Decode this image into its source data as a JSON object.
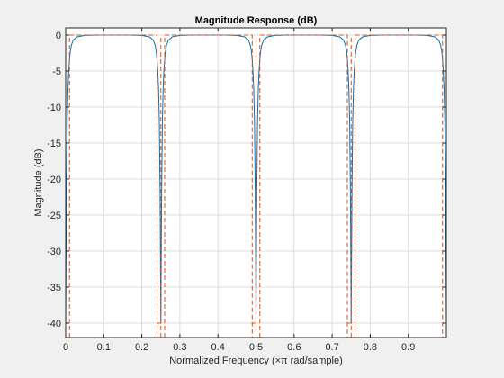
{
  "colors": {
    "figure_bg": "#f0f0f0",
    "axes_bg": "#ffffff",
    "axis": "#262626",
    "grid": "#dcdcdc",
    "response": "#0072bd",
    "mask": "#d95319"
  },
  "chart_data": {
    "type": "line",
    "title": "Magnitude Response (dB)",
    "xlabel": "Normalized Frequency (×π rad/sample)",
    "ylabel": "Magnitude (dB)",
    "xlim": [
      0,
      1
    ],
    "ylim": [
      -42,
      1
    ],
    "xticks": [
      0,
      0.1,
      0.2,
      0.3,
      0.4,
      0.5,
      0.6,
      0.7,
      0.8,
      0.9
    ],
    "xtick_labels": [
      "0",
      "0.1",
      "0.2",
      "0.3",
      "0.4",
      "0.5",
      "0.6",
      "0.7",
      "0.8",
      "0.9"
    ],
    "yticks": [
      0,
      -5,
      -10,
      -15,
      -20,
      -25,
      -30,
      -35,
      -40
    ],
    "ytick_labels": [
      "0",
      "-5",
      "-10",
      "-15",
      "-20",
      "-25",
      "-30",
      "-35",
      "-40"
    ],
    "grid": true,
    "legend": "none",
    "series": [
      {
        "style": "solid",
        "points": [
          [
            0,
            -40
          ],
          [
            0.002,
            -22
          ],
          [
            0.004,
            -12
          ],
          [
            0.006,
            -7.5
          ],
          [
            0.008,
            -5
          ],
          [
            0.01,
            -3.4
          ],
          [
            0.012,
            -2.3
          ],
          [
            0.015,
            -1.4
          ],
          [
            0.02,
            -0.7
          ],
          [
            0.03,
            -0.25
          ],
          [
            0.05,
            -0.05
          ],
          [
            0.08,
            0
          ],
          [
            0.17,
            0
          ],
          [
            0.2,
            -0.05
          ],
          [
            0.22,
            -0.25
          ],
          [
            0.23,
            -0.7
          ],
          [
            0.235,
            -1.4
          ],
          [
            0.238,
            -2.3
          ],
          [
            0.24,
            -3.4
          ],
          [
            0.242,
            -5
          ],
          [
            0.244,
            -7.5
          ],
          [
            0.246,
            -12
          ],
          [
            0.248,
            -22
          ],
          [
            0.25,
            -40
          ],
          [
            0.252,
            -22
          ],
          [
            0.254,
            -12
          ],
          [
            0.256,
            -7.5
          ],
          [
            0.258,
            -5
          ],
          [
            0.26,
            -3.4
          ],
          [
            0.262,
            -2.3
          ],
          [
            0.265,
            -1.4
          ],
          [
            0.27,
            -0.7
          ],
          [
            0.28,
            -0.25
          ],
          [
            0.3,
            -0.05
          ],
          [
            0.33,
            0
          ],
          [
            0.42,
            0
          ],
          [
            0.45,
            -0.05
          ],
          [
            0.47,
            -0.25
          ],
          [
            0.48,
            -0.7
          ],
          [
            0.485,
            -1.4
          ],
          [
            0.488,
            -2.3
          ],
          [
            0.49,
            -3.4
          ],
          [
            0.492,
            -5
          ],
          [
            0.494,
            -7.5
          ],
          [
            0.496,
            -12
          ],
          [
            0.498,
            -22
          ],
          [
            0.5,
            -40
          ],
          [
            0.502,
            -22
          ],
          [
            0.504,
            -12
          ],
          [
            0.506,
            -7.5
          ],
          [
            0.508,
            -5
          ],
          [
            0.51,
            -3.4
          ],
          [
            0.512,
            -2.3
          ],
          [
            0.515,
            -1.4
          ],
          [
            0.52,
            -0.7
          ],
          [
            0.53,
            -0.25
          ],
          [
            0.55,
            -0.05
          ],
          [
            0.58,
            0
          ],
          [
            0.67,
            0
          ],
          [
            0.7,
            -0.05
          ],
          [
            0.72,
            -0.25
          ],
          [
            0.73,
            -0.7
          ],
          [
            0.735,
            -1.4
          ],
          [
            0.738,
            -2.3
          ],
          [
            0.74,
            -3.4
          ],
          [
            0.742,
            -5
          ],
          [
            0.744,
            -7.5
          ],
          [
            0.746,
            -12
          ],
          [
            0.748,
            -22
          ],
          [
            0.75,
            -40
          ],
          [
            0.752,
            -22
          ],
          [
            0.754,
            -12
          ],
          [
            0.756,
            -7.5
          ],
          [
            0.758,
            -5
          ],
          [
            0.76,
            -3.4
          ],
          [
            0.762,
            -2.3
          ],
          [
            0.765,
            -1.4
          ],
          [
            0.77,
            -0.7
          ],
          [
            0.78,
            -0.25
          ],
          [
            0.8,
            -0.05
          ],
          [
            0.83,
            0
          ],
          [
            0.92,
            0
          ],
          [
            0.95,
            -0.05
          ],
          [
            0.97,
            -0.25
          ],
          [
            0.98,
            -0.7
          ],
          [
            0.985,
            -1.4
          ],
          [
            0.988,
            -2.3
          ],
          [
            0.99,
            -3.4
          ],
          [
            0.992,
            -5
          ],
          [
            0.994,
            -7.5
          ],
          [
            0.996,
            -12
          ],
          [
            0.998,
            -22
          ],
          [
            1.0,
            -40
          ]
        ]
      },
      {
        "style": "dashed",
        "points": [
          [
            0.01,
            -42
          ],
          [
            0.01,
            0
          ],
          [
            0.24,
            0
          ],
          [
            0.24,
            -42
          ],
          null,
          [
            0.26,
            -42
          ],
          [
            0.26,
            0
          ],
          [
            0.49,
            0
          ],
          [
            0.49,
            -42
          ],
          null,
          [
            0.51,
            -42
          ],
          [
            0.51,
            0
          ],
          [
            0.74,
            0
          ],
          [
            0.74,
            -42
          ],
          null,
          [
            0.76,
            -42
          ],
          [
            0.76,
            0
          ],
          [
            0.99,
            0
          ],
          [
            0.99,
            -42
          ],
          null,
          [
            0.0,
            0
          ],
          [
            0.01,
            0
          ],
          null,
          [
            0.0,
            -40
          ],
          [
            0.01,
            -40
          ],
          null,
          [
            0.24,
            -40
          ],
          [
            0.26,
            -40
          ],
          null,
          [
            0.49,
            -40
          ],
          [
            0.51,
            -40
          ],
          null,
          [
            0.74,
            -40
          ],
          [
            0.76,
            -40
          ],
          null,
          [
            0.99,
            -40
          ],
          [
            1.0,
            -40
          ],
          null,
          [
            0.0,
            -42
          ],
          [
            0.0,
            -40
          ],
          null,
          [
            0.25,
            -42
          ],
          [
            0.25,
            0
          ],
          null,
          [
            0.5,
            -42
          ],
          [
            0.5,
            0
          ],
          null,
          [
            0.75,
            -42
          ],
          [
            0.75,
            0
          ]
        ]
      }
    ]
  }
}
